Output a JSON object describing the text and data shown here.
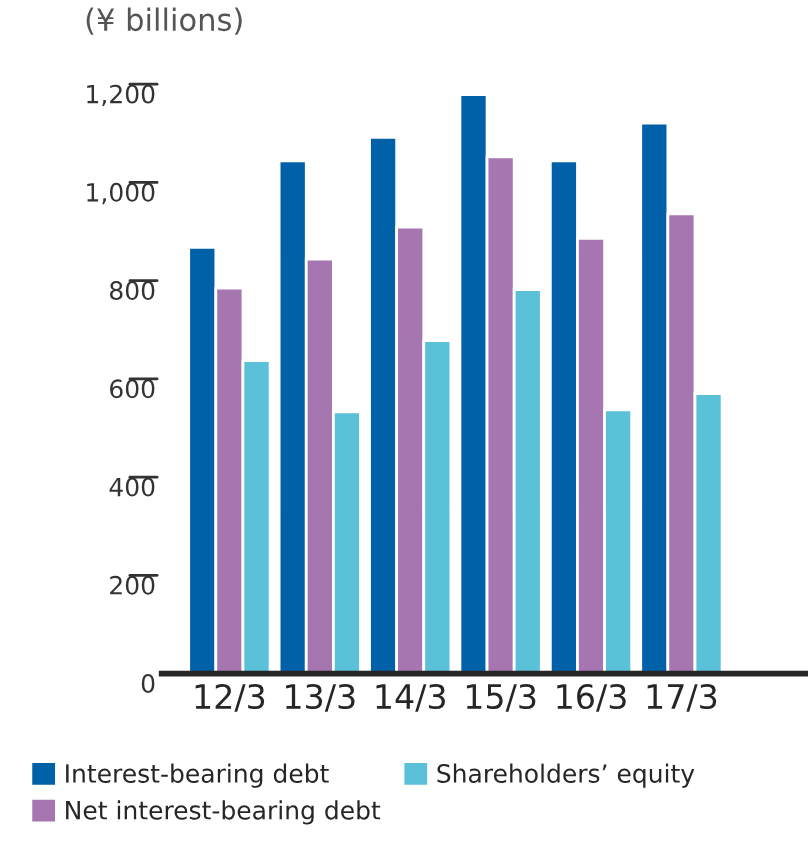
{
  "chart_data": {
    "type": "bar",
    "ylabel": "(¥ billions)",
    "categories": [
      "12/3",
      "13/3",
      "14/3",
      "15/3",
      "16/3",
      "17/3"
    ],
    "series": [
      {
        "name": "Interest-bearing debt",
        "color": "#0060a8",
        "values": [
          868,
          1044,
          1092,
          1179,
          1044,
          1121
        ]
      },
      {
        "name": "Net interest-bearing debt",
        "color": "#a576b0",
        "values": [
          785,
          844,
          909,
          1052,
          886,
          936
        ]
      },
      {
        "name": "Shareholders’ equity",
        "color": "#5bc1d8",
        "values": [
          637,
          533,
          678,
          782,
          537,
          570
        ]
      }
    ],
    "ylim": [
      0,
      1200
    ],
    "yticks": [
      0,
      200,
      400,
      600,
      800,
      {
        "value": 1000,
        "label": "1,000"
      },
      {
        "value": 1200,
        "label": "1,200"
      }
    ],
    "grid": false,
    "legend": "bottom"
  }
}
